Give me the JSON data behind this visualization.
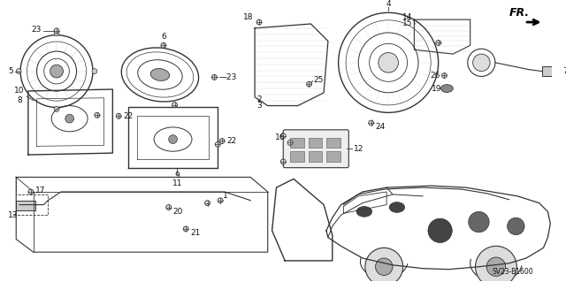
{
  "bg_color": "#ffffff",
  "diagram_code": "SV23-B1600",
  "line_color": "#333333",
  "text_color": "#111111"
}
